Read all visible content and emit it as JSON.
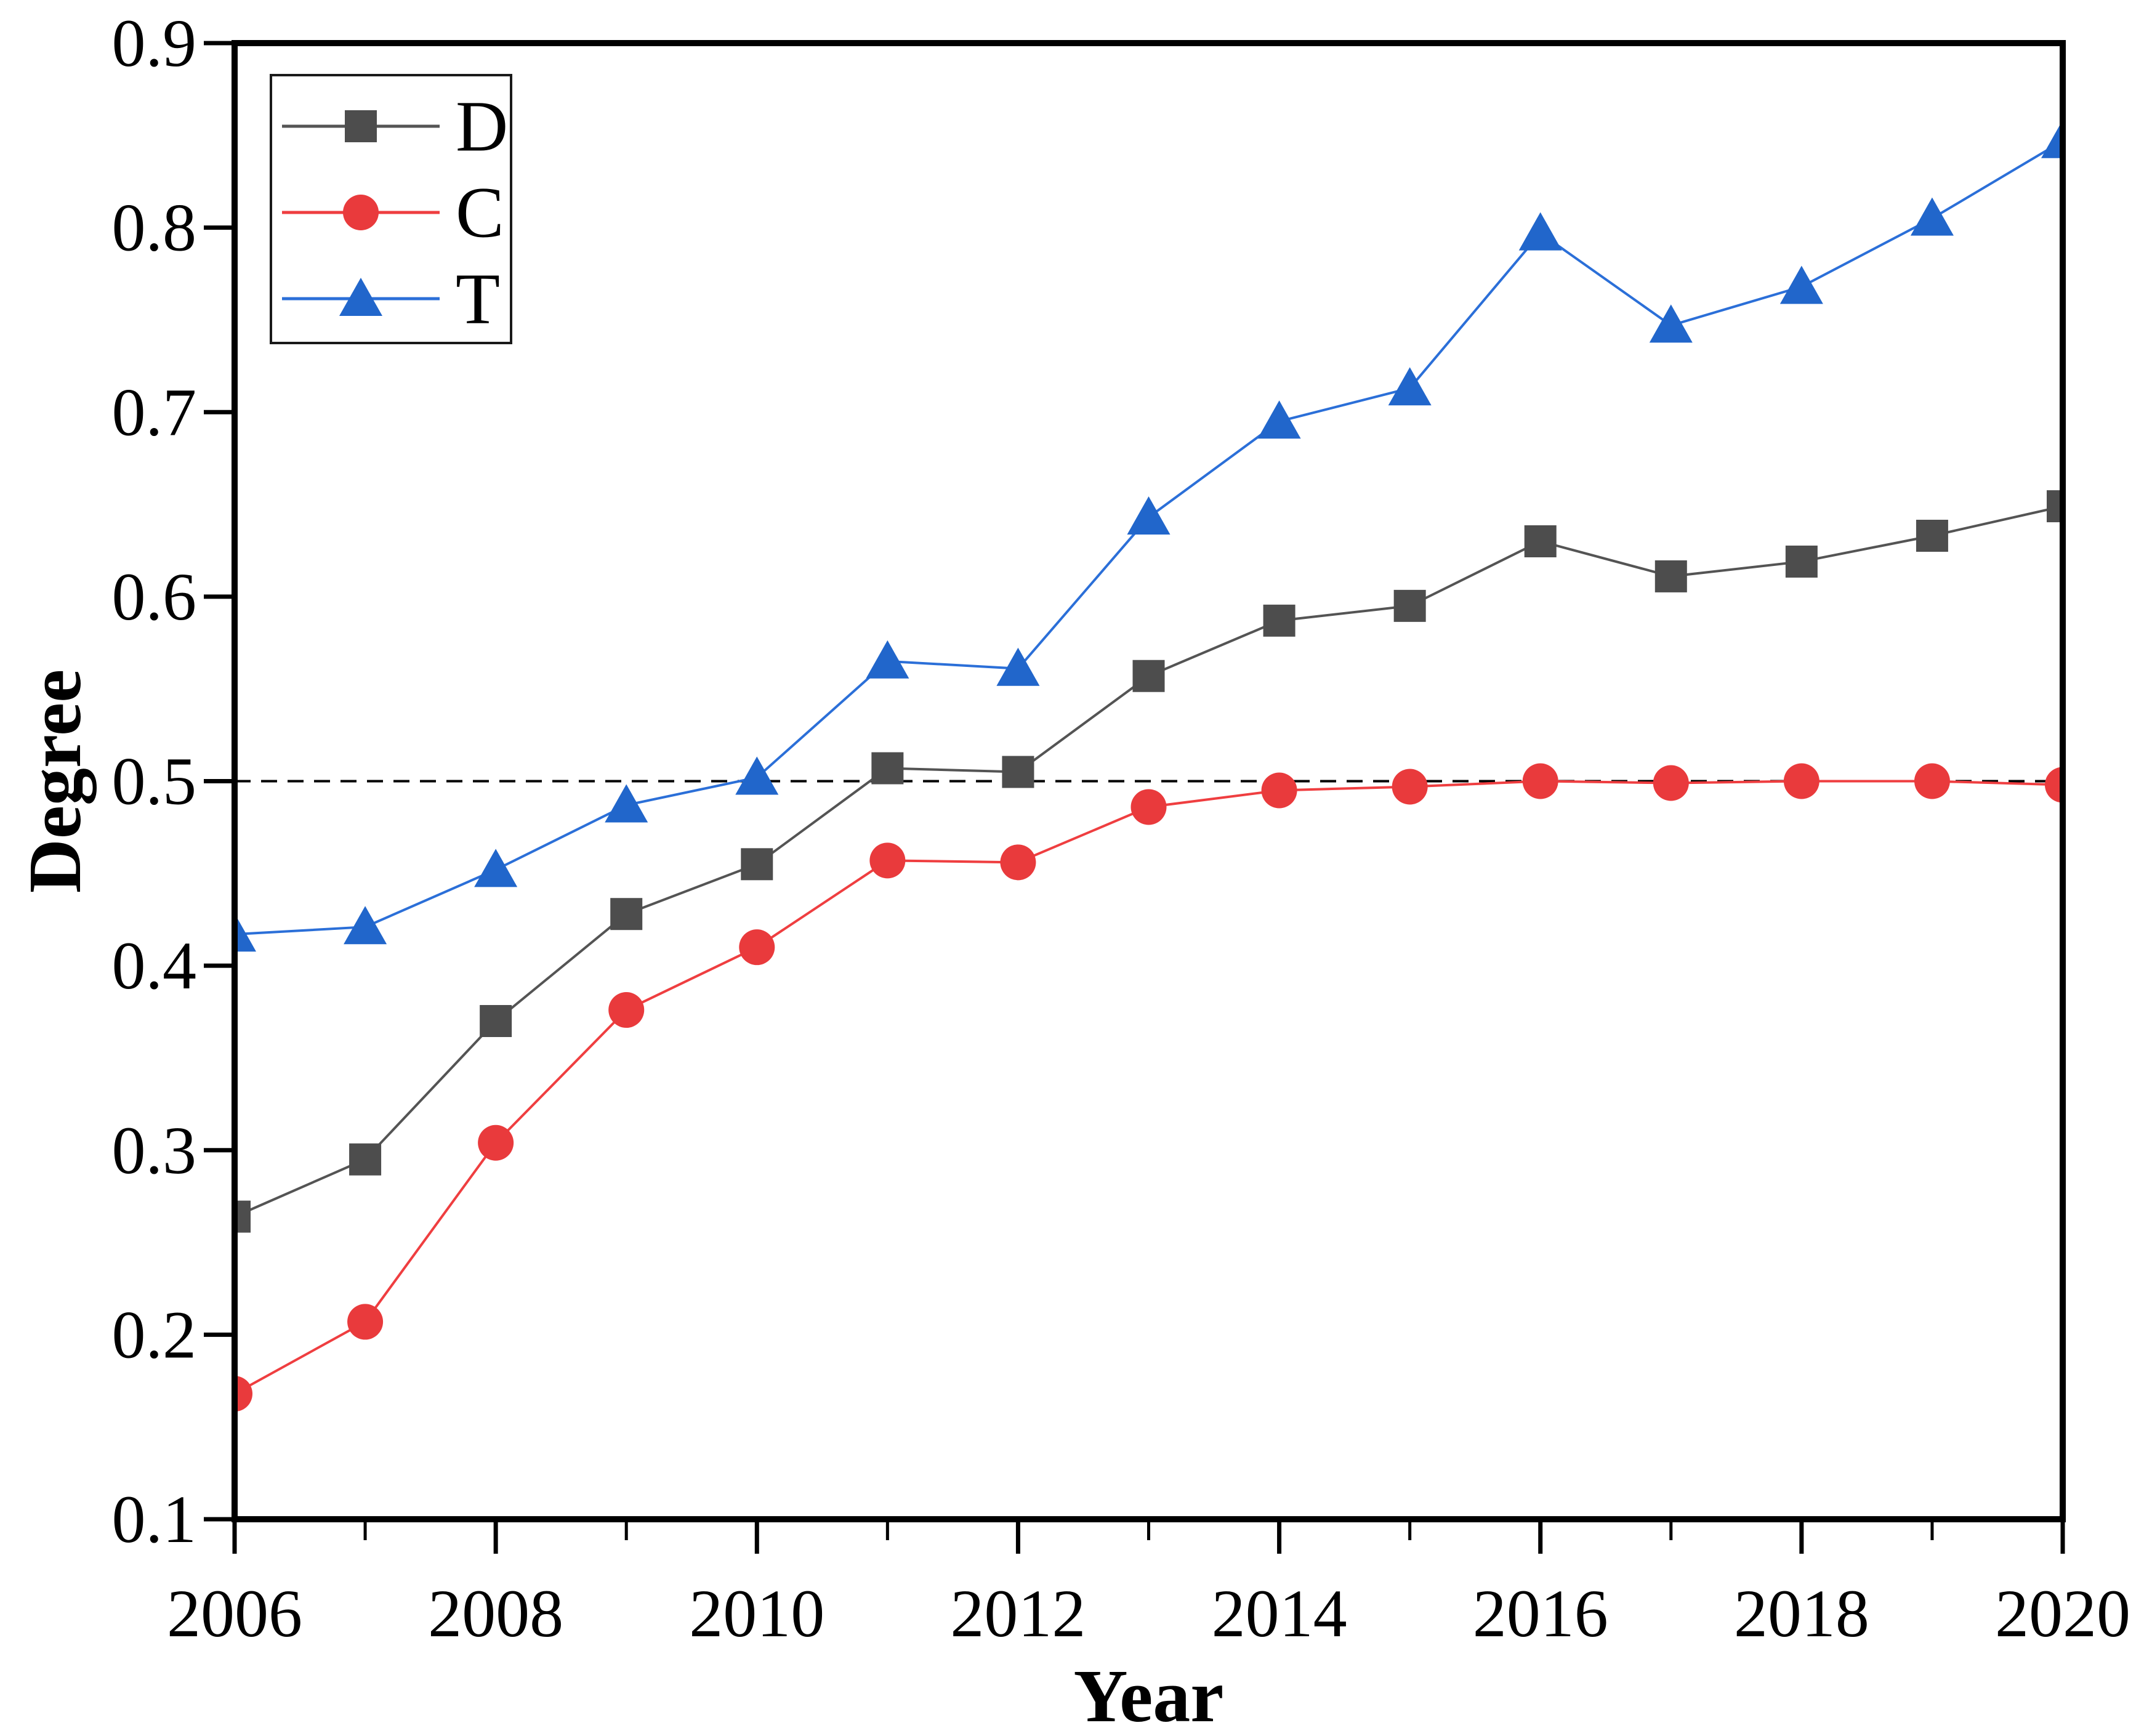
{
  "figure": {
    "background": "#ffffff"
  },
  "chart_data": {
    "type": "line",
    "title": "",
    "xlabel": "Year",
    "ylabel": "Degree",
    "xlim": [
      2006,
      2020
    ],
    "ylim": [
      0.1,
      0.9
    ],
    "grid": false,
    "x": [
      2006,
      2007,
      2008,
      2009,
      2010,
      2011,
      2012,
      2013,
      2014,
      2015,
      2016,
      2017,
      2018,
      2019,
      2020
    ],
    "x_major_ticks": [
      2006,
      2008,
      2010,
      2012,
      2014,
      2016,
      2018,
      2020
    ],
    "x_minor_ticks": [
      2007,
      2009,
      2011,
      2013,
      2015,
      2017,
      2019
    ],
    "y_ticks": [
      0.1,
      0.2,
      0.3,
      0.4,
      0.5,
      0.6,
      0.7,
      0.8,
      0.9
    ],
    "reference_line": {
      "y": 0.5,
      "style": "dashed",
      "color": "#000000"
    },
    "legend": {
      "position": "top-left",
      "entries": [
        "D",
        "C",
        "T"
      ]
    },
    "series": [
      {
        "name": "D",
        "marker": "square",
        "marker_color": "#4d4d4d",
        "line_color": "#545454",
        "values": [
          0.264,
          0.295,
          0.37,
          0.428,
          0.455,
          0.507,
          0.505,
          0.557,
          0.587,
          0.595,
          0.63,
          0.611,
          0.619,
          0.633,
          0.649
        ]
      },
      {
        "name": "C",
        "marker": "circle",
        "marker_color": "#e93a3c",
        "line_color": "#ef3e40",
        "values": [
          0.168,
          0.207,
          0.304,
          0.376,
          0.41,
          0.457,
          0.456,
          0.486,
          0.495,
          0.497,
          0.5,
          0.499,
          0.5,
          0.5,
          0.498
        ]
      },
      {
        "name": "T",
        "marker": "triangle",
        "marker_color": "#2166cb",
        "line_color": "#2b6fd8",
        "values": [
          0.417,
          0.421,
          0.452,
          0.487,
          0.502,
          0.565,
          0.561,
          0.643,
          0.695,
          0.713,
          0.797,
          0.747,
          0.768,
          0.805,
          0.847
        ]
      }
    ]
  }
}
